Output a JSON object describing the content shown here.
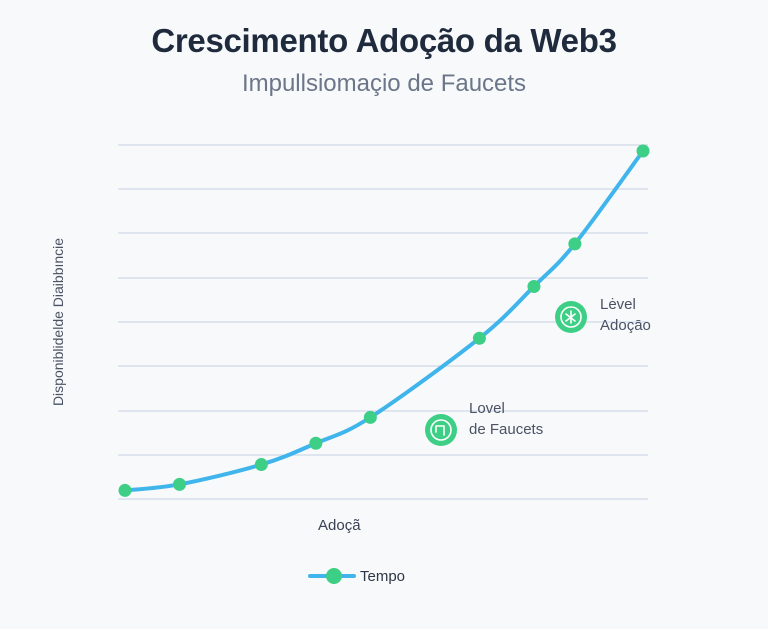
{
  "chart_data": {
    "type": "line",
    "title": "Crescimento Adoção da Web3",
    "subtitle": "Impullsiomaçio de Faucets",
    "xlabel": "Adoçã",
    "ylabel": "Disponiblidelde Diaibbıncie",
    "grid": true,
    "legend_position": "bottom",
    "series": [
      {
        "name": "Tempo",
        "color": "#3fb5ec",
        "marker_color": "#3ecf86",
        "points": [
          {
            "x": 0,
            "y": 0.3
          },
          {
            "x": 1,
            "y": 0.7
          },
          {
            "x": 2.5,
            "y": 2.0
          },
          {
            "x": 3.5,
            "y": 3.4
          },
          {
            "x": 4.5,
            "y": 5.1
          },
          {
            "x": 6.5,
            "y": 10.3
          },
          {
            "x": 7.5,
            "y": 13.7
          },
          {
            "x": 8.25,
            "y": 16.5
          },
          {
            "x": 9.5,
            "y": 22.6
          }
        ]
      }
    ],
    "xlim": [
      0,
      9.5
    ],
    "ylim": [
      0,
      22.6
    ],
    "annotations": [
      {
        "line1": "Lovel",
        "line2": "de Faucets",
        "icon": "faucet-icon"
      },
      {
        "line1": "Lėvel",
        "line2": "Adoçāo",
        "icon": "network-icon"
      }
    ]
  }
}
